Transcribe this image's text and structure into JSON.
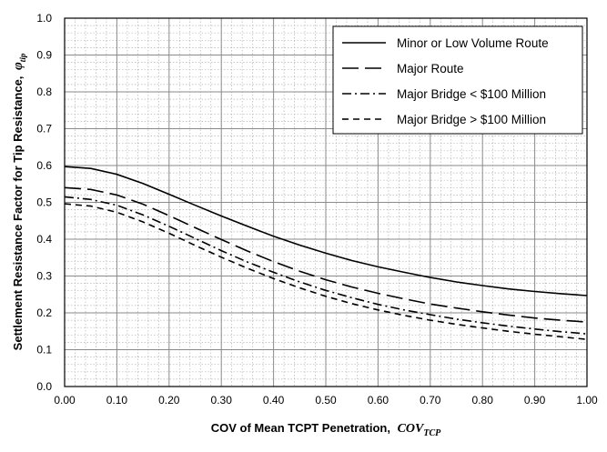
{
  "chart_data": {
    "type": "line",
    "title": "",
    "xlabel": "COV of Mean TCPT Penetration,",
    "xlabel_symbol": "COV",
    "xlabel_symbol_sub": "TCP",
    "ylabel": "Settlement Resistance Factor for Tip Resistance,",
    "ylabel_symbol": "φ",
    "ylabel_symbol_sub": "tip",
    "xlim": [
      0,
      1
    ],
    "ylim": [
      0,
      1
    ],
    "x_ticks": [
      "0.00",
      "0.10",
      "0.20",
      "0.30",
      "0.40",
      "0.50",
      "0.60",
      "0.70",
      "0.80",
      "0.90",
      "1.00"
    ],
    "y_ticks": [
      "0.0",
      "0.1",
      "0.2",
      "0.3",
      "0.4",
      "0.5",
      "0.6",
      "0.7",
      "0.8",
      "0.9",
      "1.0"
    ],
    "grid": true,
    "legend_position": "top-right",
    "x": [
      0.0,
      0.05,
      0.1,
      0.15,
      0.2,
      0.25,
      0.3,
      0.35,
      0.4,
      0.45,
      0.5,
      0.55,
      0.6,
      0.65,
      0.7,
      0.75,
      0.8,
      0.85,
      0.9,
      0.95,
      1.0
    ],
    "series": [
      {
        "name": "Minor or Low Volume Route",
        "dash": "solid",
        "values": [
          0.597,
          0.592,
          0.576,
          0.551,
          0.522,
          0.492,
          0.463,
          0.435,
          0.408,
          0.384,
          0.362,
          0.342,
          0.325,
          0.31,
          0.296,
          0.284,
          0.274,
          0.265,
          0.258,
          0.252,
          0.247
        ]
      },
      {
        "name": "Major Route",
        "dash": "long-dash",
        "values": [
          0.54,
          0.535,
          0.52,
          0.495,
          0.464,
          0.431,
          0.399,
          0.368,
          0.339,
          0.313,
          0.29,
          0.27,
          0.253,
          0.238,
          0.224,
          0.213,
          0.203,
          0.194,
          0.186,
          0.18,
          0.175
        ]
      },
      {
        "name": "Major Bridge < $100 Million",
        "dash": "dash-dot",
        "values": [
          0.515,
          0.508,
          0.492,
          0.466,
          0.435,
          0.402,
          0.369,
          0.338,
          0.31,
          0.284,
          0.261,
          0.241,
          0.223,
          0.208,
          0.195,
          0.183,
          0.173,
          0.164,
          0.156,
          0.149,
          0.143
        ]
      },
      {
        "name": "Major Bridge > $100 Million",
        "dash": "short-dash",
        "values": [
          0.496,
          0.49,
          0.473,
          0.447,
          0.416,
          0.383,
          0.351,
          0.321,
          0.293,
          0.268,
          0.245,
          0.225,
          0.208,
          0.193,
          0.18,
          0.169,
          0.159,
          0.15,
          0.142,
          0.135,
          0.128
        ]
      }
    ]
  }
}
